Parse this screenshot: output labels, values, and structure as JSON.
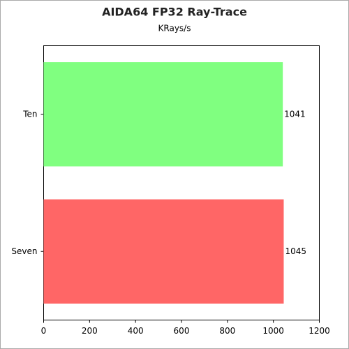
{
  "chart_data": {
    "type": "hbar",
    "title": "AIDA64 FP32 Ray-Trace",
    "subtitle": "KRays/s",
    "categories": [
      "Ten",
      "Seven"
    ],
    "values": [
      1041,
      1045
    ],
    "colors": [
      "#80ff80",
      "#ff6666"
    ],
    "xlim": [
      0,
      1200
    ],
    "xticks": [
      0,
      200,
      400,
      600,
      800,
      1000,
      1200
    ],
    "grid": false
  }
}
